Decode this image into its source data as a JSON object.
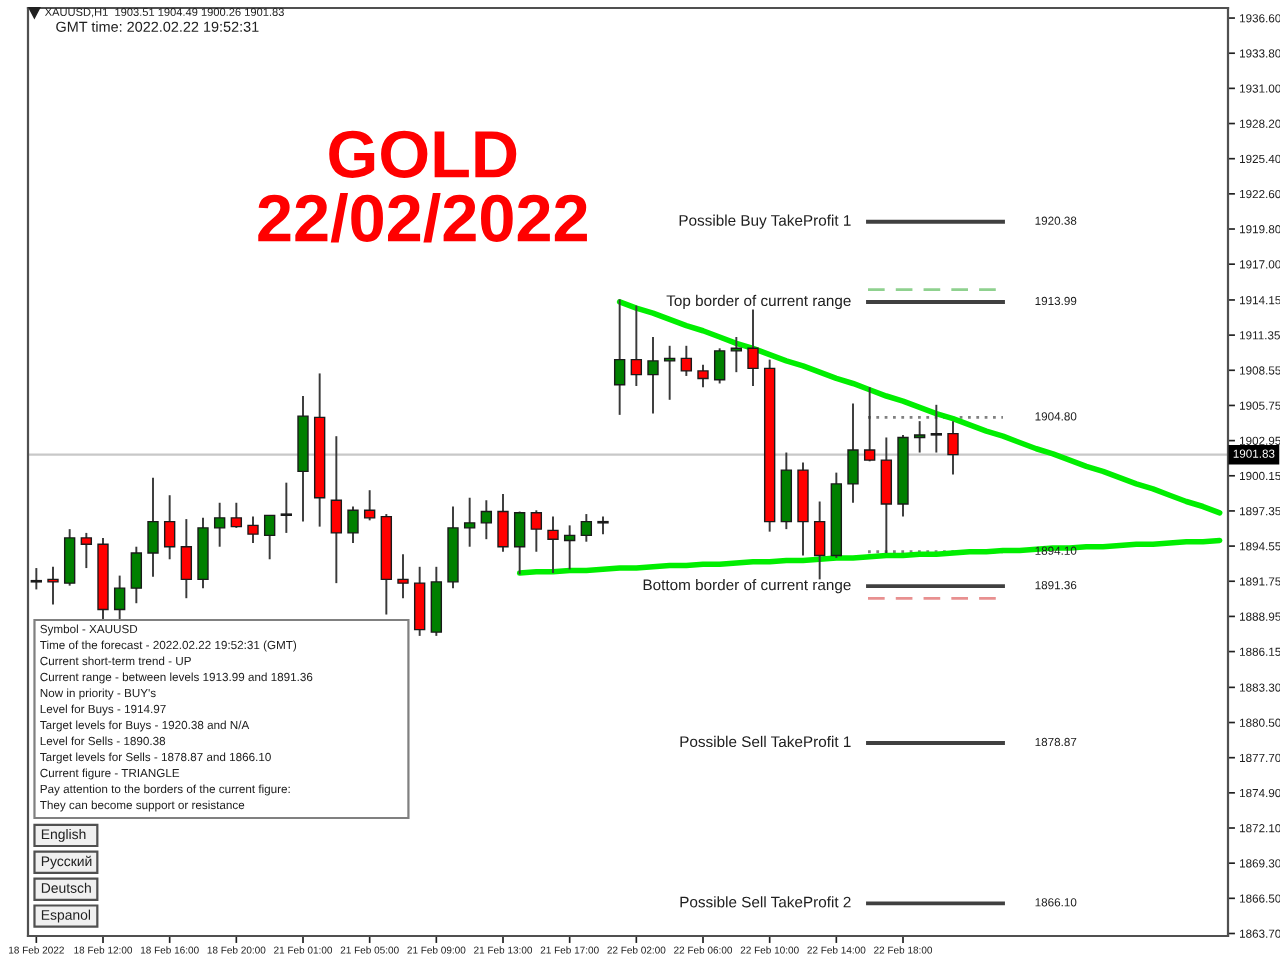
{
  "chart_data": {
    "type": "candlestick",
    "title": "GOLD",
    "subtitle": "22/02/2022",
    "categories": [
      "18 Feb 2022",
      null,
      null,
      null,
      "18 Feb 12:00",
      null,
      null,
      null,
      "18 Feb 16:00",
      null,
      null,
      null,
      "18 Feb 20:00",
      null,
      null,
      null,
      "21 Feb 01:00",
      null,
      null,
      null,
      "21 Feb 05:00",
      null,
      null,
      null,
      "21 Feb 09:00",
      null,
      null,
      null,
      "21 Feb 13:00",
      null,
      null,
      null,
      "21 Feb 17:00",
      null,
      null,
      null,
      "22 Feb 02:00",
      null,
      null,
      null,
      "22 Feb 06:00",
      null,
      null,
      null,
      "22 Feb 10:00",
      null,
      null,
      null,
      "22 Feb 14:00",
      null,
      null,
      null,
      "22 Feb 18:00",
      null,
      null,
      null,
      null,
      null,
      null,
      null,
      null,
      null,
      null,
      null,
      null,
      null,
      null,
      null,
      null,
      null,
      null,
      null
    ],
    "ohlc": [
      [
        1891.8,
        1892.8,
        1891.1,
        1891.7
      ],
      [
        1891.9,
        1892.9,
        1889.9,
        1891.7
      ],
      [
        1891.6,
        1895.9,
        1891.4,
        1895.2
      ],
      [
        1895.2,
        1895.6,
        1892.8,
        1894.7
      ],
      [
        1894.7,
        1895.2,
        1888.7,
        1889.5
      ],
      [
        1889.5,
        1892.2,
        1888.7,
        1891.2
      ],
      [
        1891.2,
        1894.5,
        1890.0,
        1894.0
      ],
      [
        1894.0,
        1900.0,
        1892.1,
        1896.5
      ],
      [
        1896.5,
        1898.6,
        1893.5,
        1894.5
      ],
      [
        1894.5,
        1896.7,
        1890.4,
        1891.9
      ],
      [
        1891.9,
        1896.8,
        1891.2,
        1896.0
      ],
      [
        1896.0,
        1898.0,
        1894.5,
        1896.8
      ],
      [
        1896.8,
        1898.0,
        1896.0,
        1896.1
      ],
      [
        1896.2,
        1896.9,
        1894.8,
        1895.5
      ],
      [
        1895.4,
        1897.0,
        1893.5,
        1897.0
      ],
      [
        1897.0,
        1899.6,
        1895.6,
        1897.1
      ],
      [
        1900.5,
        1906.5,
        1896.5,
        1904.9
      ],
      [
        1904.8,
        1908.3,
        1896.1,
        1898.4
      ],
      [
        1898.2,
        1903.3,
        1891.6,
        1895.6
      ],
      [
        1895.6,
        1897.7,
        1894.8,
        1897.4
      ],
      [
        1897.4,
        1899.0,
        1896.6,
        1896.8
      ],
      [
        1896.9,
        1897.1,
        1889.1,
        1891.9
      ],
      [
        1891.9,
        1893.9,
        1890.4,
        1891.6
      ],
      [
        1891.6,
        1892.9,
        1887.4,
        1887.9
      ],
      [
        1887.7,
        1892.9,
        1887.4,
        1891.7
      ],
      [
        1891.7,
        1897.7,
        1891.2,
        1896.0
      ],
      [
        1896.0,
        1898.4,
        1894.5,
        1896.4
      ],
      [
        1896.4,
        1898.2,
        1895.1,
        1897.3
      ],
      [
        1897.3,
        1898.7,
        1894.1,
        1894.5
      ],
      [
        1894.5,
        1897.3,
        1892.3,
        1897.2
      ],
      [
        1897.2,
        1897.4,
        1894.1,
        1895.9
      ],
      [
        1895.8,
        1896.9,
        1892.4,
        1895.1
      ],
      [
        1895.0,
        1896.2,
        1892.7,
        1895.4
      ],
      [
        1895.4,
        1897.1,
        1894.9,
        1896.5
      ],
      [
        1896.5,
        1896.9,
        1895.5,
        1896.4
      ],
      [
        1907.4,
        1914.2,
        1905.0,
        1909.4
      ],
      [
        1909.4,
        1913.7,
        1907.3,
        1908.2
      ],
      [
        1908.2,
        1911.2,
        1905.1,
        1909.3
      ],
      [
        1909.3,
        1910.5,
        1906.2,
        1909.5
      ],
      [
        1909.5,
        1910.5,
        1908.1,
        1908.5
      ],
      [
        1908.5,
        1909.0,
        1907.2,
        1907.9
      ],
      [
        1907.8,
        1910.3,
        1907.5,
        1910.1
      ],
      [
        1910.1,
        1911.2,
        1908.4,
        1910.3
      ],
      [
        1910.3,
        1913.4,
        1907.3,
        1908.7
      ],
      [
        1908.7,
        1909.4,
        1895.7,
        1896.5
      ],
      [
        1896.5,
        1902.0,
        1895.9,
        1900.6
      ],
      [
        1900.6,
        1901.2,
        1893.8,
        1896.5
      ],
      [
        1896.5,
        1898.1,
        1891.9,
        1893.8
      ],
      [
        1893.8,
        1900.4,
        1893.6,
        1899.5
      ],
      [
        1899.5,
        1905.9,
        1898.0,
        1902.2
      ],
      [
        1902.2,
        1907.2,
        1901.3,
        1901.4
      ],
      [
        1901.4,
        1903.2,
        1894.0,
        1897.9
      ],
      [
        1897.9,
        1903.4,
        1896.9,
        1903.2
      ],
      [
        1903.2,
        1904.5,
        1902.0,
        1903.4
      ],
      [
        1903.4,
        1905.8,
        1902.0,
        1903.5
      ],
      [
        1903.51,
        1904.49,
        1900.26,
        1901.83
      ],
      null,
      null,
      null,
      null,
      null,
      null,
      null,
      null,
      null,
      null,
      null,
      null,
      null,
      null,
      null,
      null
    ],
    "colors": [
      "#ff0000",
      "#ff0000",
      "#008000",
      "#ff0000",
      "#ff0000",
      "#008000",
      "#008000",
      "#008000",
      "#ff0000",
      "#ff0000",
      "#008000",
      "#008000",
      "#ff0000",
      "#ff0000",
      "#008000",
      "#008000",
      "#008000",
      "#ff0000",
      "#ff0000",
      "#008000",
      "#ff0000",
      "#ff0000",
      "#ff0000",
      "#ff0000",
      "#008000",
      "#008000",
      "#008000",
      "#008000",
      "#ff0000",
      "#008000",
      "#ff0000",
      "#ff0000",
      "#008000",
      "#008000",
      "#ff0000",
      "#008000",
      "#ff0000",
      "#008000",
      "#008000",
      "#ff0000",
      "#ff0000",
      "#008000",
      "#008000",
      "#ff0000",
      "#ff0000",
      "#008000",
      "#ff0000",
      "#ff0000",
      "#008000",
      "#008000",
      "#ff0000",
      "#ff0000",
      "#008000",
      "#008000",
      "#008000",
      "#ff0000",
      null,
      null,
      null,
      null,
      null,
      null,
      null,
      null,
      null,
      null,
      null,
      null,
      null,
      null,
      null,
      null
    ],
    "series": [
      {
        "type": "line",
        "color": "#00ee00",
        "values": [
          null,
          null,
          null,
          null,
          null,
          null,
          null,
          null,
          null,
          null,
          null,
          null,
          null,
          null,
          null,
          null,
          null,
          null,
          null,
          null,
          null,
          null,
          null,
          null,
          null,
          null,
          null,
          null,
          null,
          null,
          null,
          null,
          null,
          null,
          null,
          1914.0,
          1913.5,
          1913.1,
          1912.6,
          1912.1,
          1911.7,
          1911.2,
          1910.7,
          1910.3,
          1909.8,
          1909.3,
          1908.9,
          1908.4,
          1907.9,
          1907.5,
          1907.0,
          1906.5,
          1906.1,
          1905.6,
          1905.1,
          1904.7,
          1904.2,
          1903.7,
          1903.3,
          1902.8,
          1902.3,
          1901.9,
          1901.4,
          1900.9,
          1900.5,
          1900.0,
          1899.5,
          1899.1,
          1898.6,
          1898.1,
          1897.7,
          1897.2
        ]
      },
      {
        "type": "line",
        "color": "#00ee00",
        "values": [
          null,
          null,
          null,
          null,
          null,
          null,
          null,
          null,
          null,
          null,
          null,
          null,
          null,
          null,
          null,
          null,
          null,
          null,
          null,
          null,
          null,
          null,
          null,
          null,
          null,
          null,
          null,
          null,
          null,
          1892.4,
          1892.5,
          1892.5,
          1892.6,
          1892.6,
          1892.7,
          1892.8,
          1892.8,
          1892.9,
          1893.0,
          1893.0,
          1893.1,
          1893.1,
          1893.2,
          1893.3,
          1893.3,
          1893.4,
          1893.4,
          1893.5,
          1893.6,
          1893.6,
          1893.7,
          1893.8,
          1893.8,
          1893.9,
          1893.9,
          1894.0,
          1894.1,
          1894.1,
          1894.2,
          1894.2,
          1894.3,
          1894.4,
          1894.4,
          1894.5,
          1894.5,
          1894.6,
          1894.7,
          1894.7,
          1894.8,
          1894.9,
          1894.9,
          1895.0
        ]
      }
    ],
    "ylim": [
      1863.5,
      1937.4
    ],
    "yticks": [
      {
        "value": 1936.6,
        "label": "1936.60"
      },
      {
        "value": 1933.8,
        "label": "1933.80"
      },
      {
        "value": 1931,
        "label": "1931.00"
      },
      {
        "value": 1928.2,
        "label": "1928.20"
      },
      {
        "value": 1925.4,
        "label": "1925.40"
      },
      {
        "value": 1922.6,
        "label": "1922.60"
      },
      {
        "value": 1919.8,
        "label": "1919.80"
      },
      {
        "value": 1917,
        "label": "1917.00"
      },
      1914.15,
      1911.35,
      1908.55,
      1905.75,
      1902.95,
      1900.15,
      1897.35,
      1894.55,
      1891.75,
      1888.95,
      1886.15,
      {
        "value": 1883.3,
        "label": "1883.30"
      },
      {
        "value": 1880.5,
        "label": "1880.50"
      },
      {
        "value": 1877.7,
        "label": "1877.70"
      },
      {
        "value": 1874.9,
        "label": "1874.90"
      },
      {
        "value": 1872.1,
        "label": "1872.10"
      },
      {
        "value": 1869.3,
        "label": "1869.30"
      },
      {
        "value": 1866.5,
        "label": "1866.50"
      },
      {
        "value": 1863.7,
        "label": "1863.70"
      }
    ],
    "ref_lines": [
      {
        "axis": "y",
        "value": 1901.83,
        "label": "1901.83",
        "color": "#c8c8c8"
      },
      {
        "axis": "y",
        "value": 1920.38,
        "label": "1920.38",
        "color": "#404040"
      },
      {
        "axis": "y",
        "value": 1913.99,
        "label": "1913.99",
        "color": "#404040"
      },
      {
        "axis": "y",
        "value": 1904.8,
        "label": "1904.80",
        "color": "#808080",
        "line_style": "dotted"
      },
      {
        "axis": "y",
        "value": 1894.1,
        "label": "1894.10",
        "color": "#808080",
        "line_style": "dotted"
      },
      {
        "axis": "y",
        "value": 1891.36,
        "label": "1891.36",
        "color": "#404040"
      },
      {
        "axis": "y",
        "value": 1878.87,
        "label": "1878.87",
        "color": "#404040"
      },
      {
        "axis": "y",
        "value": 1866.1,
        "label": "1866.10",
        "color": "#404040"
      },
      {
        "axis": "y",
        "value": 1914.97,
        "color": "#8fd18f",
        "line_style": "dashed"
      },
      {
        "axis": "y",
        "value": 1890.38,
        "color": "#e89090",
        "line_style": "dashed"
      }
    ],
    "annotations": [
      "XAUUSD,H1  1903.51 1904.49 1900.26 1901.83",
      "GMT time: 2022.02.22 19:52:31",
      "Symbol - XAUUSD",
      "Time of the forecast - 2022.02.22 19:52:31 (GMT)",
      "Current short-term trend - UP",
      "Current range - between levels 1913.99 and 1891.36",
      "Now in priority - BUY's",
      "Level for Buys - 1914.97",
      "Target levels for Buys - 1920.38 and N/A",
      "Level for Sells - 1890.38",
      "Target levels for Sells - 1878.87 and 1866.10",
      "Current figure - TRIANGLE",
      "Pay attention to the borders of the current figure:",
      "They can become support or resistance",
      "English",
      "Русский",
      "Deutsch",
      "Espanol",
      "Possible Buy TakeProfit 1",
      "Top border of current range",
      "Bottom border of current range",
      "Possible Sell TakeProfit 1",
      "Possible Sell TakeProfit 2"
    ]
  }
}
